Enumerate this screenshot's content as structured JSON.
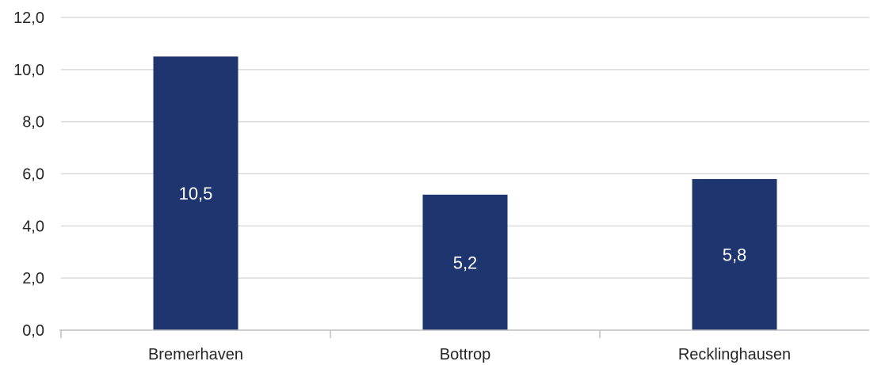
{
  "chart_data": {
    "type": "bar",
    "categories": [
      "Bremerhaven",
      "Bottrop",
      "Recklinghausen"
    ],
    "values": [
      10.5,
      5.2,
      5.8
    ],
    "value_labels": [
      "10,5",
      "5,2",
      "5,8"
    ],
    "ylim": [
      0,
      12
    ],
    "y_ticks": [
      "0,0",
      "2,0",
      "4,0",
      "6,0",
      "8,0",
      "10,0",
      "12,0"
    ],
    "y_tick_values": [
      0,
      2,
      4,
      6,
      8,
      10,
      12
    ],
    "grid": true,
    "bar_color": "#1f3570",
    "title": "",
    "xlabel": "",
    "ylabel": ""
  }
}
